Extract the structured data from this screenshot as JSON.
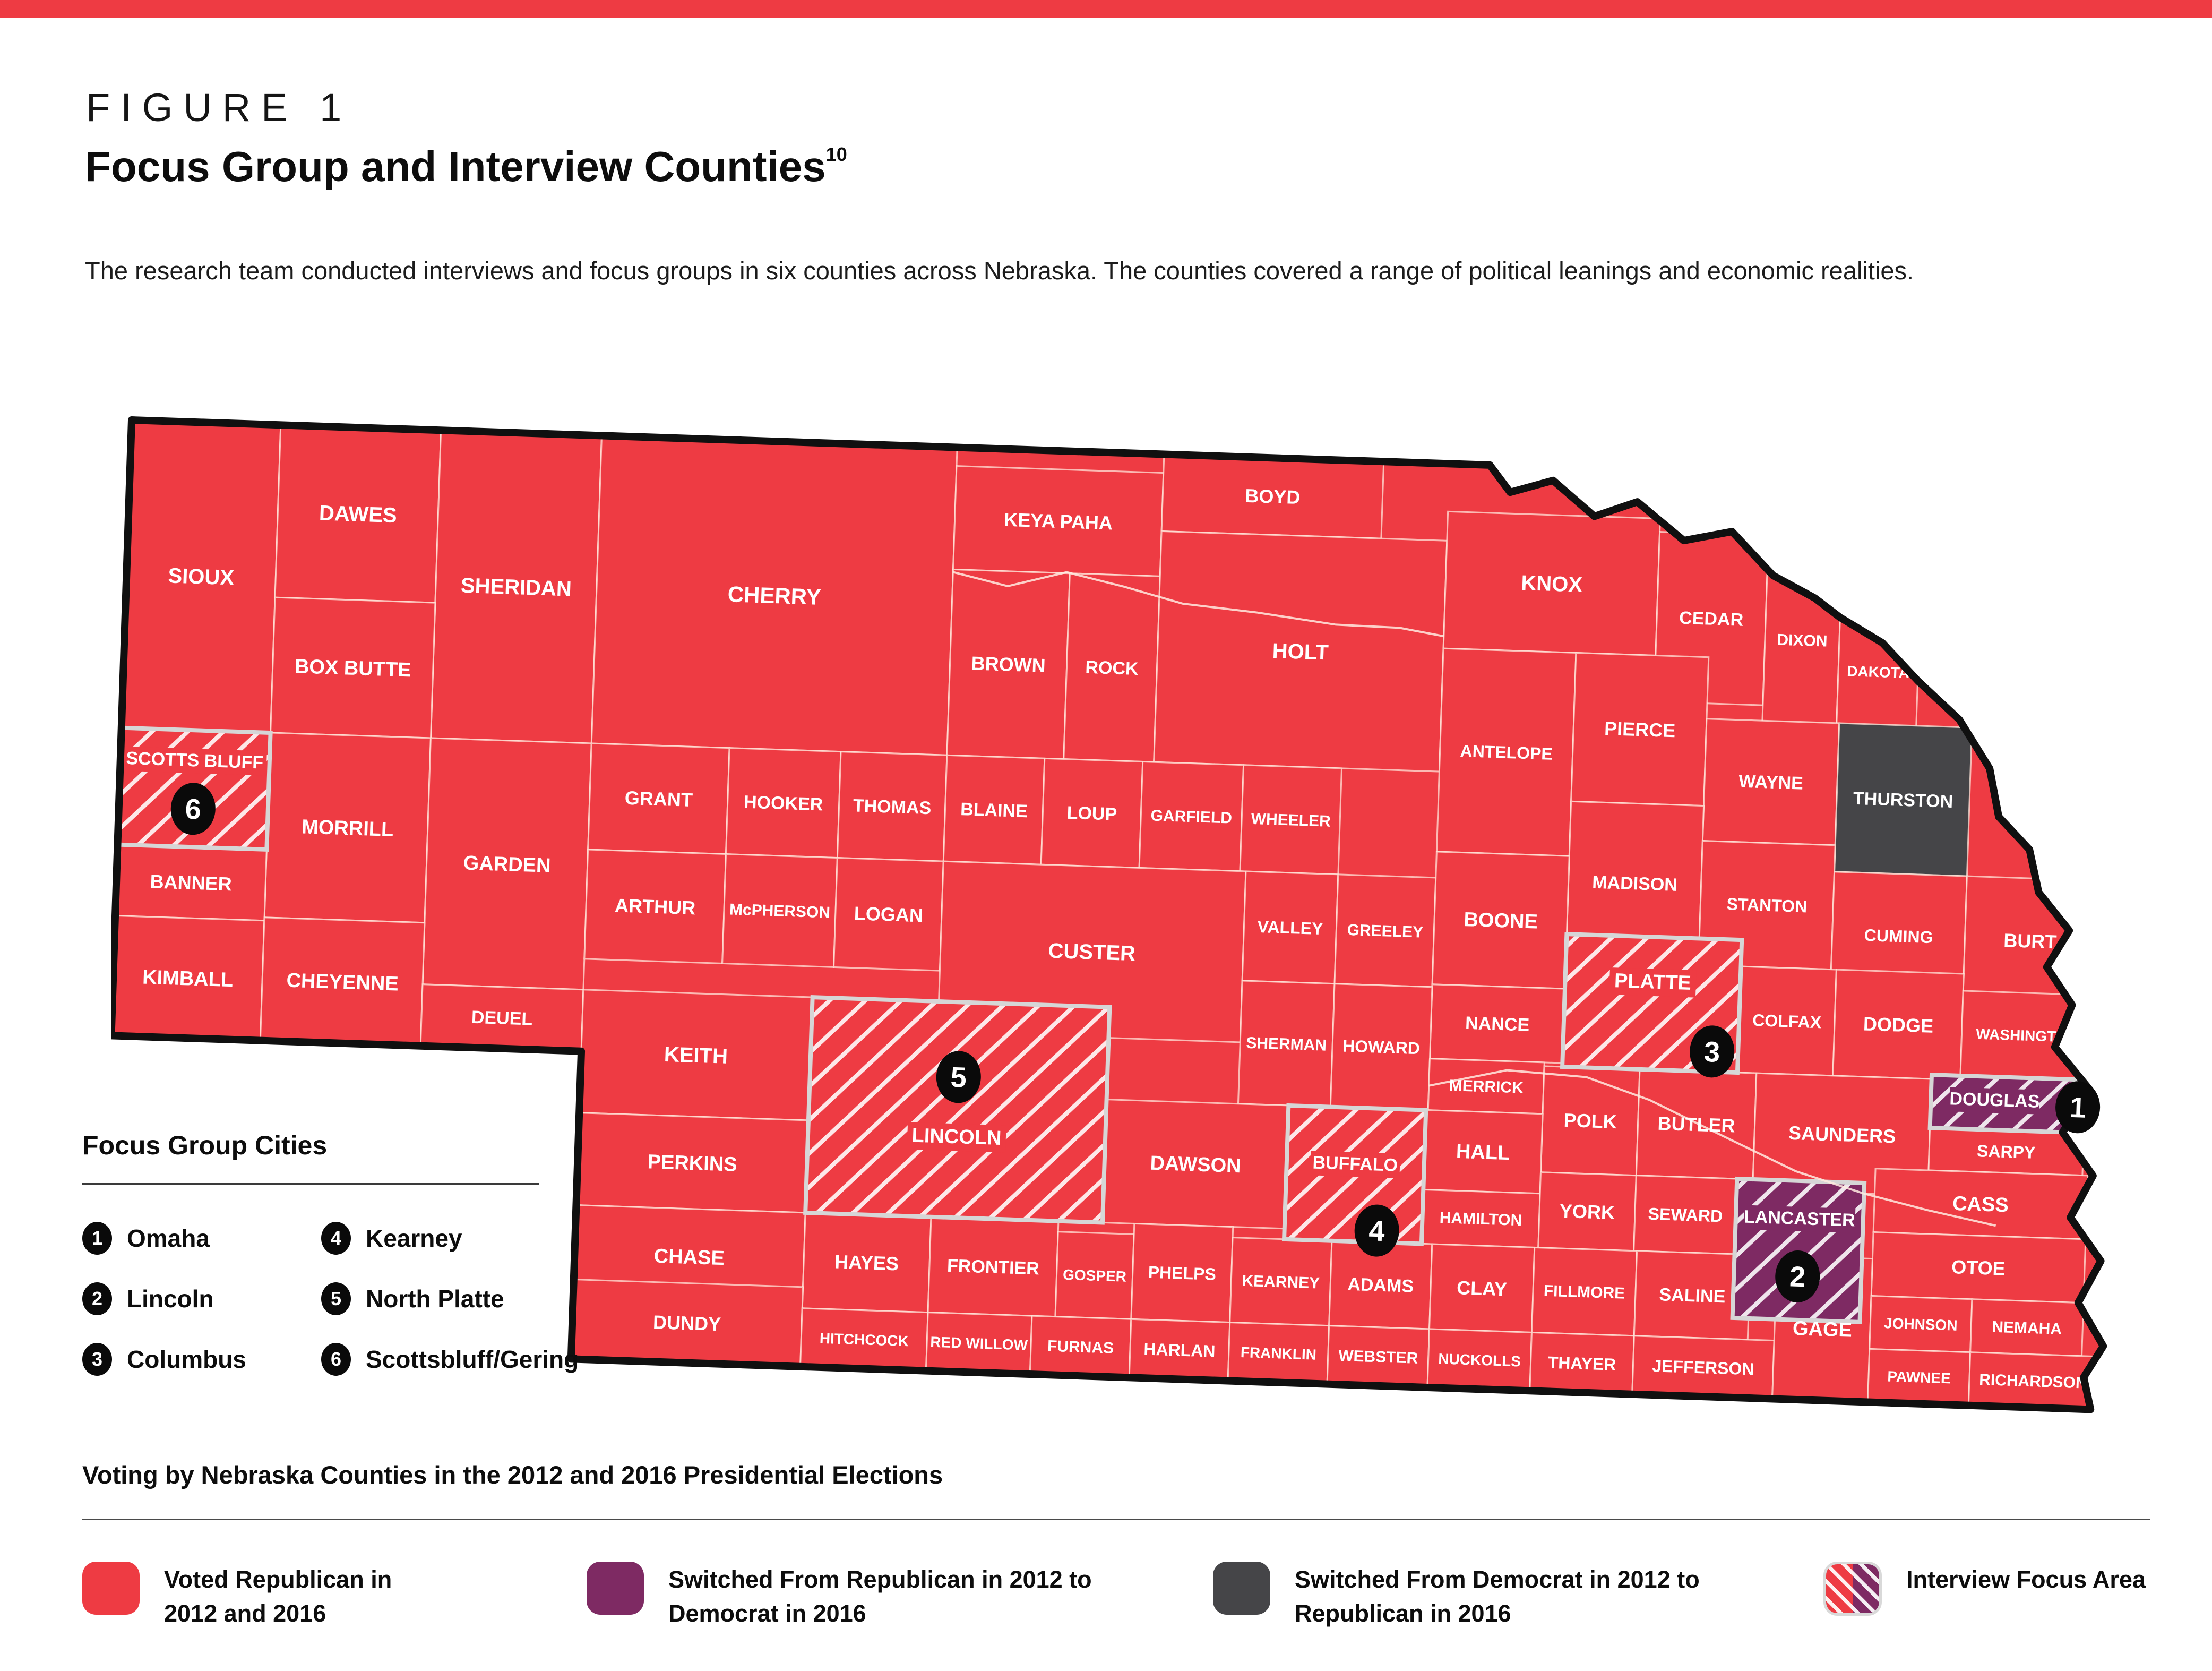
{
  "page": {
    "figure_label": "FIGURE 1",
    "title": "Focus Group and Interview Counties",
    "title_superscript": "10",
    "description": "The research team conducted interviews and focus groups in six counties across Nebraska. The counties covered a range of political leanings and economic realities."
  },
  "colors": {
    "republican": "#EE3B43",
    "switched_democrat": "#7E2A63",
    "switched_republican": "#454548"
  },
  "focus_cities": {
    "heading": "Focus Group Cities",
    "items": [
      {
        "number": "1",
        "city": "Omaha"
      },
      {
        "number": "2",
        "city": "Lincoln"
      },
      {
        "number": "3",
        "city": "Columbus"
      },
      {
        "number": "4",
        "city": "Kearney"
      },
      {
        "number": "5",
        "city": "North Platte"
      },
      {
        "number": "6",
        "city": "Scottsbluff/Gering"
      }
    ]
  },
  "voting": {
    "heading": "Voting by Nebraska Counties in the 2012 and 2016 Presidential Elections",
    "items": [
      {
        "swatch": "republican",
        "label": "Voted Republican in 2012 and 2016"
      },
      {
        "swatch": "switched_democrat",
        "label": "Switched From Republican in 2012 to Democrat in 2016"
      },
      {
        "swatch": "switched_republican",
        "label": "Switched From Democrat in 2012 to Republican in 2016"
      },
      {
        "swatch": "focus_area",
        "label": "Interview Focus Area"
      }
    ]
  },
  "map": {
    "counties": [
      {
        "name": "SIOUX",
        "status": "republican",
        "hatched": false,
        "focus_number": null
      },
      {
        "name": "DAWES",
        "status": "republican",
        "hatched": false,
        "focus_number": null
      },
      {
        "name": "SHERIDAN",
        "status": "republican",
        "hatched": false,
        "focus_number": null
      },
      {
        "name": "BOX BUTTE",
        "status": "republican",
        "hatched": false,
        "focus_number": null
      },
      {
        "name": "SCOTTS BLUFF",
        "status": "republican",
        "hatched": true,
        "focus_number": "6"
      },
      {
        "name": "MORRILL",
        "status": "republican",
        "hatched": false,
        "focus_number": null
      },
      {
        "name": "GARDEN",
        "status": "republican",
        "hatched": false,
        "focus_number": null
      },
      {
        "name": "BANNER",
        "status": "republican",
        "hatched": false,
        "focus_number": null
      },
      {
        "name": "KIMBALL",
        "status": "republican",
        "hatched": false,
        "focus_number": null
      },
      {
        "name": "CHEYENNE",
        "status": "republican",
        "hatched": false,
        "focus_number": null
      },
      {
        "name": "DEUEL",
        "status": "republican",
        "hatched": false,
        "focus_number": null
      },
      {
        "name": "CHERRY",
        "status": "republican",
        "hatched": false,
        "focus_number": null
      },
      {
        "name": "KEYA PAHA",
        "status": "republican",
        "hatched": false,
        "focus_number": null
      },
      {
        "name": "BOYD",
        "status": "republican",
        "hatched": false,
        "focus_number": null
      },
      {
        "name": "BROWN",
        "status": "republican",
        "hatched": false,
        "focus_number": null
      },
      {
        "name": "ROCK",
        "status": "republican",
        "hatched": false,
        "focus_number": null
      },
      {
        "name": "HOLT",
        "status": "republican",
        "hatched": false,
        "focus_number": null
      },
      {
        "name": "KNOX",
        "status": "republican",
        "hatched": false,
        "focus_number": null
      },
      {
        "name": "CEDAR",
        "status": "republican",
        "hatched": false,
        "focus_number": null
      },
      {
        "name": "DIXON",
        "status": "republican",
        "hatched": false,
        "focus_number": null
      },
      {
        "name": "DAKOTA",
        "status": "republican",
        "hatched": false,
        "focus_number": null
      },
      {
        "name": "GRANT",
        "status": "republican",
        "hatched": false,
        "focus_number": null
      },
      {
        "name": "HOOKER",
        "status": "republican",
        "hatched": false,
        "focus_number": null
      },
      {
        "name": "THOMAS",
        "status": "republican",
        "hatched": false,
        "focus_number": null
      },
      {
        "name": "BLAINE",
        "status": "republican",
        "hatched": false,
        "focus_number": null
      },
      {
        "name": "LOUP",
        "status": "republican",
        "hatched": false,
        "focus_number": null
      },
      {
        "name": "GARFIELD",
        "status": "republican",
        "hatched": false,
        "focus_number": null
      },
      {
        "name": "WHEELER",
        "status": "republican",
        "hatched": false,
        "focus_number": null
      },
      {
        "name": "ANTELOPE",
        "status": "republican",
        "hatched": false,
        "focus_number": null
      },
      {
        "name": "PIERCE",
        "status": "republican",
        "hatched": false,
        "focus_number": null
      },
      {
        "name": "WAYNE",
        "status": "republican",
        "hatched": false,
        "focus_number": null
      },
      {
        "name": "THURSTON",
        "status": "switched_republican",
        "hatched": false,
        "focus_number": null
      },
      {
        "name": "MADISON",
        "status": "republican",
        "hatched": false,
        "focus_number": null
      },
      {
        "name": "STANTON",
        "status": "republican",
        "hatched": false,
        "focus_number": null
      },
      {
        "name": "CUMING",
        "status": "republican",
        "hatched": false,
        "focus_number": null
      },
      {
        "name": "BURT",
        "status": "republican",
        "hatched": false,
        "focus_number": null
      },
      {
        "name": "ARTHUR",
        "status": "republican",
        "hatched": false,
        "focus_number": null
      },
      {
        "name": "McPHERSON",
        "status": "republican",
        "hatched": false,
        "focus_number": null
      },
      {
        "name": "LOGAN",
        "status": "republican",
        "hatched": false,
        "focus_number": null
      },
      {
        "name": "CUSTER",
        "status": "republican",
        "hatched": false,
        "focus_number": null
      },
      {
        "name": "VALLEY",
        "status": "republican",
        "hatched": false,
        "focus_number": null
      },
      {
        "name": "GREELEY",
        "status": "republican",
        "hatched": false,
        "focus_number": null
      },
      {
        "name": "BOONE",
        "status": "republican",
        "hatched": false,
        "focus_number": null
      },
      {
        "name": "PLATTE",
        "status": "republican",
        "hatched": true,
        "focus_number": "3"
      },
      {
        "name": "COLFAX",
        "status": "republican",
        "hatched": false,
        "focus_number": null
      },
      {
        "name": "DODGE",
        "status": "republican",
        "hatched": false,
        "focus_number": null
      },
      {
        "name": "WASHINGTON",
        "status": "republican",
        "hatched": false,
        "focus_number": null
      },
      {
        "name": "NANCE",
        "status": "republican",
        "hatched": false,
        "focus_number": null
      },
      {
        "name": "SHERMAN",
        "status": "republican",
        "hatched": false,
        "focus_number": null
      },
      {
        "name": "HOWARD",
        "status": "republican",
        "hatched": false,
        "focus_number": null
      },
      {
        "name": "MERRICK",
        "status": "republican",
        "hatched": false,
        "focus_number": null
      },
      {
        "name": "POLK",
        "status": "republican",
        "hatched": false,
        "focus_number": null
      },
      {
        "name": "BUTLER",
        "status": "republican",
        "hatched": false,
        "focus_number": null
      },
      {
        "name": "SAUNDERS",
        "status": "republican",
        "hatched": false,
        "focus_number": null
      },
      {
        "name": "DOUGLAS",
        "status": "switched_democrat",
        "hatched": true,
        "focus_number": "1"
      },
      {
        "name": "SARPY",
        "status": "republican",
        "hatched": false,
        "focus_number": null
      },
      {
        "name": "KEITH",
        "status": "republican",
        "hatched": false,
        "focus_number": null
      },
      {
        "name": "PERKINS",
        "status": "republican",
        "hatched": false,
        "focus_number": null
      },
      {
        "name": "LINCOLN",
        "status": "republican",
        "hatched": true,
        "focus_number": "5"
      },
      {
        "name": "DAWSON",
        "status": "republican",
        "hatched": false,
        "focus_number": null
      },
      {
        "name": "BUFFALO",
        "status": "republican",
        "hatched": true,
        "focus_number": "4"
      },
      {
        "name": "HALL",
        "status": "republican",
        "hatched": false,
        "focus_number": null
      },
      {
        "name": "HAMILTON",
        "status": "republican",
        "hatched": false,
        "focus_number": null
      },
      {
        "name": "YORK",
        "status": "republican",
        "hatched": false,
        "focus_number": null
      },
      {
        "name": "SEWARD",
        "status": "republican",
        "hatched": false,
        "focus_number": null
      },
      {
        "name": "LANCASTER",
        "status": "switched_democrat",
        "hatched": true,
        "focus_number": "2"
      },
      {
        "name": "CASS",
        "status": "republican",
        "hatched": false,
        "focus_number": null
      },
      {
        "name": "OTOE",
        "status": "republican",
        "hatched": false,
        "focus_number": null
      },
      {
        "name": "CHASE",
        "status": "republican",
        "hatched": false,
        "focus_number": null
      },
      {
        "name": "HAYES",
        "status": "republican",
        "hatched": false,
        "focus_number": null
      },
      {
        "name": "FRONTIER",
        "status": "republican",
        "hatched": false,
        "focus_number": null
      },
      {
        "name": "GOSPER",
        "status": "republican",
        "hatched": false,
        "focus_number": null
      },
      {
        "name": "PHELPS",
        "status": "republican",
        "hatched": false,
        "focus_number": null
      },
      {
        "name": "KEARNEY",
        "status": "republican",
        "hatched": false,
        "focus_number": null
      },
      {
        "name": "ADAMS",
        "status": "republican",
        "hatched": false,
        "focus_number": null
      },
      {
        "name": "CLAY",
        "status": "republican",
        "hatched": false,
        "focus_number": null
      },
      {
        "name": "FILLMORE",
        "status": "republican",
        "hatched": false,
        "focus_number": null
      },
      {
        "name": "SALINE",
        "status": "republican",
        "hatched": false,
        "focus_number": null
      },
      {
        "name": "DUNDY",
        "status": "republican",
        "hatched": false,
        "focus_number": null
      },
      {
        "name": "HITCHCOCK",
        "status": "republican",
        "hatched": false,
        "focus_number": null
      },
      {
        "name": "RED WILLOW",
        "status": "republican",
        "hatched": false,
        "focus_number": null
      },
      {
        "name": "FURNAS",
        "status": "republican",
        "hatched": false,
        "focus_number": null
      },
      {
        "name": "HARLAN",
        "status": "republican",
        "hatched": false,
        "focus_number": null
      },
      {
        "name": "FRANKLIN",
        "status": "republican",
        "hatched": false,
        "focus_number": null
      },
      {
        "name": "WEBSTER",
        "status": "republican",
        "hatched": false,
        "focus_number": null
      },
      {
        "name": "NUCKOLLS",
        "status": "republican",
        "hatched": false,
        "focus_number": null
      },
      {
        "name": "THAYER",
        "status": "republican",
        "hatched": false,
        "focus_number": null
      },
      {
        "name": "JEFFERSON",
        "status": "republican",
        "hatched": false,
        "focus_number": null
      },
      {
        "name": "GAGE",
        "status": "republican",
        "hatched": false,
        "focus_number": null
      },
      {
        "name": "JOHNSON",
        "status": "republican",
        "hatched": false,
        "focus_number": null
      },
      {
        "name": "NEMAHA",
        "status": "republican",
        "hatched": false,
        "focus_number": null
      },
      {
        "name": "PAWNEE",
        "status": "republican",
        "hatched": false,
        "focus_number": null
      },
      {
        "name": "RICHARDSON",
        "status": "republican",
        "hatched": false,
        "focus_number": null
      }
    ]
  }
}
